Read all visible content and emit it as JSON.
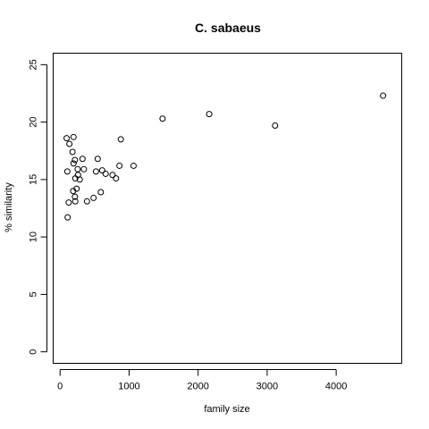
{
  "chart_data": {
    "type": "scatter",
    "title": "C. sabaeus",
    "xlabel": "family size",
    "ylabel": "% similarity",
    "xlim": [
      -100,
      4950
    ],
    "ylim": [
      -1,
      26
    ],
    "x_ticks": [
      0,
      1000,
      2000,
      3000,
      4000
    ],
    "y_ticks": [
      0,
      5,
      10,
      15,
      20,
      25
    ],
    "grid": false,
    "points": [
      {
        "x": 95,
        "y": 18.6
      },
      {
        "x": 195,
        "y": 18.7
      },
      {
        "x": 135,
        "y": 18.1
      },
      {
        "x": 180,
        "y": 17.4
      },
      {
        "x": 215,
        "y": 16.7
      },
      {
        "x": 195,
        "y": 16.4
      },
      {
        "x": 105,
        "y": 15.7
      },
      {
        "x": 255,
        "y": 15.9
      },
      {
        "x": 325,
        "y": 16.8
      },
      {
        "x": 345,
        "y": 15.9
      },
      {
        "x": 220,
        "y": 15.1
      },
      {
        "x": 260,
        "y": 15.4
      },
      {
        "x": 285,
        "y": 15.0
      },
      {
        "x": 190,
        "y": 14.0
      },
      {
        "x": 240,
        "y": 14.2
      },
      {
        "x": 215,
        "y": 13.5
      },
      {
        "x": 125,
        "y": 13.0
      },
      {
        "x": 220,
        "y": 13.1
      },
      {
        "x": 390,
        "y": 13.1
      },
      {
        "x": 485,
        "y": 13.4
      },
      {
        "x": 590,
        "y": 13.9
      },
      {
        "x": 520,
        "y": 15.7
      },
      {
        "x": 545,
        "y": 16.8
      },
      {
        "x": 610,
        "y": 15.8
      },
      {
        "x": 660,
        "y": 15.5
      },
      {
        "x": 760,
        "y": 15.4
      },
      {
        "x": 810,
        "y": 15.1
      },
      {
        "x": 860,
        "y": 16.2
      },
      {
        "x": 880,
        "y": 18.5
      },
      {
        "x": 1065,
        "y": 16.2
      },
      {
        "x": 110,
        "y": 11.7
      },
      {
        "x": 1485,
        "y": 20.3
      },
      {
        "x": 2160,
        "y": 20.7
      },
      {
        "x": 3115,
        "y": 19.7
      },
      {
        "x": 4680,
        "y": 22.3
      }
    ]
  }
}
